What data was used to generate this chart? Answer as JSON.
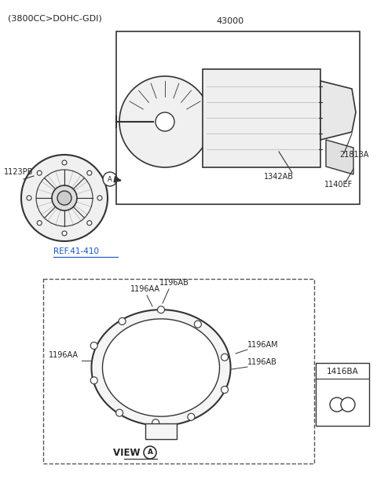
{
  "title": "(3800CC>DOHC-GDI)",
  "bg_color": "#ffffff",
  "label_43000": "43000",
  "label_21813A": "21813A",
  "label_1342AB": "1342AB",
  "label_1140EF": "1140EF",
  "label_1123PB": "1123PB",
  "label_ref": "REF.41-410",
  "label_1196AB_top": "1196AB",
  "label_1196AA_top": "1196AA",
  "label_1196AM": "1196AM",
  "label_1196AA_left": "1196AA",
  "label_1196AB_right": "1196AB",
  "label_view": "VIEW ",
  "label_1416BA": "1416BA",
  "text_color": "#222222",
  "line_color": "#333333",
  "dashed_color": "#555555"
}
